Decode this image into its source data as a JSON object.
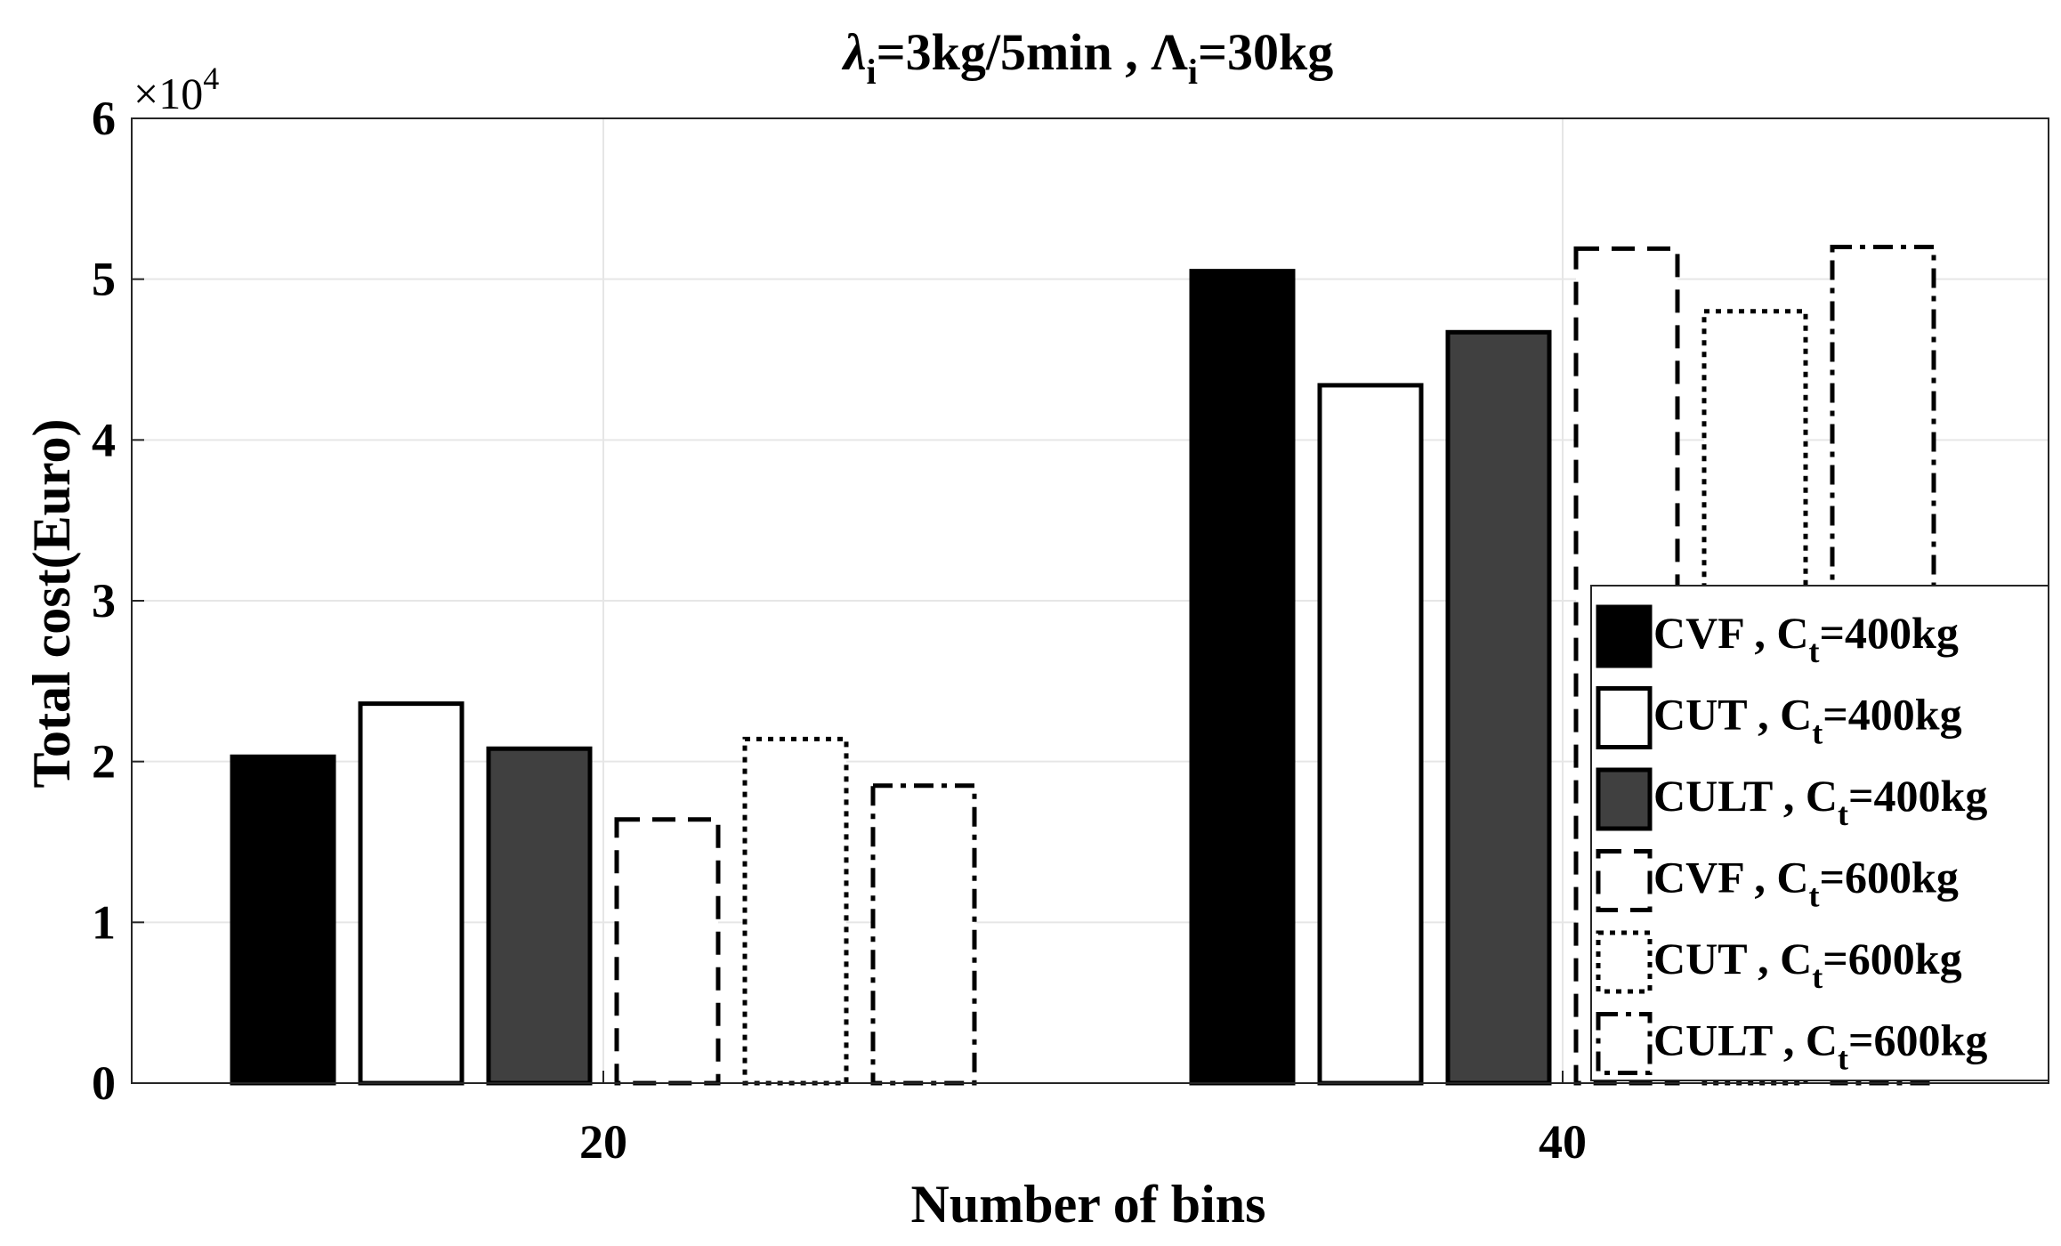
{
  "chart_data": {
    "type": "bar",
    "title": {
      "lambda": "λ",
      "lambda_sub": "i",
      "part1": "=3kg/5min , ",
      "Lambda": "Λ",
      "Lambda_sub": "i",
      "part2": "=30kg"
    },
    "xlabel": "Number of bins",
    "ylabel": "Total cost(Euro)",
    "y_exponent": {
      "base": "×10",
      "power": "4"
    },
    "categories": [
      "20",
      "40"
    ],
    "ylim": [
      0,
      60000
    ],
    "yticks": [
      0,
      10000,
      20000,
      30000,
      40000,
      50000,
      60000
    ],
    "ytick_labels": [
      "0",
      "1",
      "2",
      "3",
      "4",
      "5",
      "6"
    ],
    "grid": true,
    "legend_position": "right",
    "series": [
      {
        "name": "CVF , C_t=400kg",
        "label_main": "CVF , C",
        "label_sub": "t",
        "label_end": "=400kg",
        "style": "solid-fill",
        "fill": "#000000",
        "values": [
          20300,
          50500
        ]
      },
      {
        "name": "CUT , C_t=400kg",
        "label_main": "CUT , C",
        "label_sub": "t",
        "label_end": "=400kg",
        "style": "solid-outline",
        "fill": "#ffffff",
        "values": [
          23600,
          43400
        ]
      },
      {
        "name": "CULT , C_t=400kg",
        "label_main": "CULT , C",
        "label_sub": "t",
        "label_end": "=400kg",
        "style": "solid-fill",
        "fill": "#404040",
        "values": [
          20800,
          46700
        ]
      },
      {
        "name": "CVF , C_t=600kg",
        "label_main": "CVF , C",
        "label_sub": "t",
        "label_end": "=600kg",
        "style": "dashed",
        "fill": "#ffffff",
        "values": [
          16400,
          51900
        ]
      },
      {
        "name": "CUT , C_t=600kg",
        "label_main": "CUT , C",
        "label_sub": "t",
        "label_end": "=600kg",
        "style": "dotted",
        "fill": "#ffffff",
        "values": [
          21400,
          48000
        ]
      },
      {
        "name": "CULT , C_t=600kg",
        "label_main": "CULT , C",
        "label_sub": "t",
        "label_end": "=600kg",
        "style": "dashdot",
        "fill": "#ffffff",
        "values": [
          18500,
          52000
        ]
      }
    ]
  }
}
